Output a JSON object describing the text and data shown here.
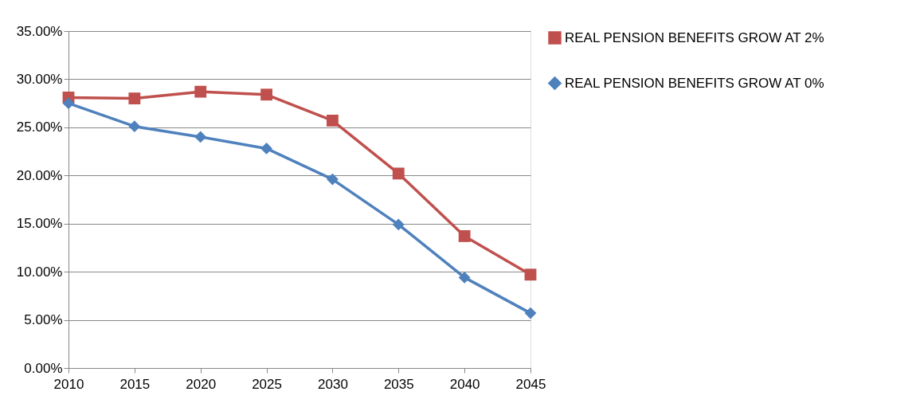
{
  "chart_data": {
    "type": "line",
    "x": [
      2010,
      2015,
      2020,
      2025,
      2030,
      2035,
      2040,
      2045
    ],
    "series": [
      {
        "name": "REAL PENSION BENEFITS GROW AT 2%",
        "color": "#c0504d",
        "marker": "square",
        "values": [
          28.1,
          28.0,
          28.7,
          28.4,
          25.7,
          20.2,
          13.7,
          9.7
        ]
      },
      {
        "name": "REAL PENSION BENEFITS GROW AT 0%",
        "color": "#4f81bd",
        "marker": "diamond",
        "values": [
          27.5,
          25.1,
          24.0,
          22.8,
          19.6,
          14.9,
          9.4,
          5.7
        ]
      }
    ],
    "xlim": [
      2010,
      2045
    ],
    "xticks": [
      2010,
      2015,
      2020,
      2025,
      2030,
      2035,
      2040,
      2045
    ],
    "ylim": [
      0,
      35
    ],
    "yticks": [
      {
        "value": 0,
        "label": "0.00%"
      },
      {
        "value": 5,
        "label": "5.00%"
      },
      {
        "value": 10,
        "label": "10.00%"
      },
      {
        "value": 15,
        "label": "15.00%"
      },
      {
        "value": 20,
        "label": "20.00%"
      },
      {
        "value": 25,
        "label": "25.00%"
      },
      {
        "value": 30,
        "label": "30.00%"
      },
      {
        "value": 35,
        "label": "35.00%"
      }
    ],
    "grid": "y",
    "legend": "right",
    "line_style": "solid"
  }
}
